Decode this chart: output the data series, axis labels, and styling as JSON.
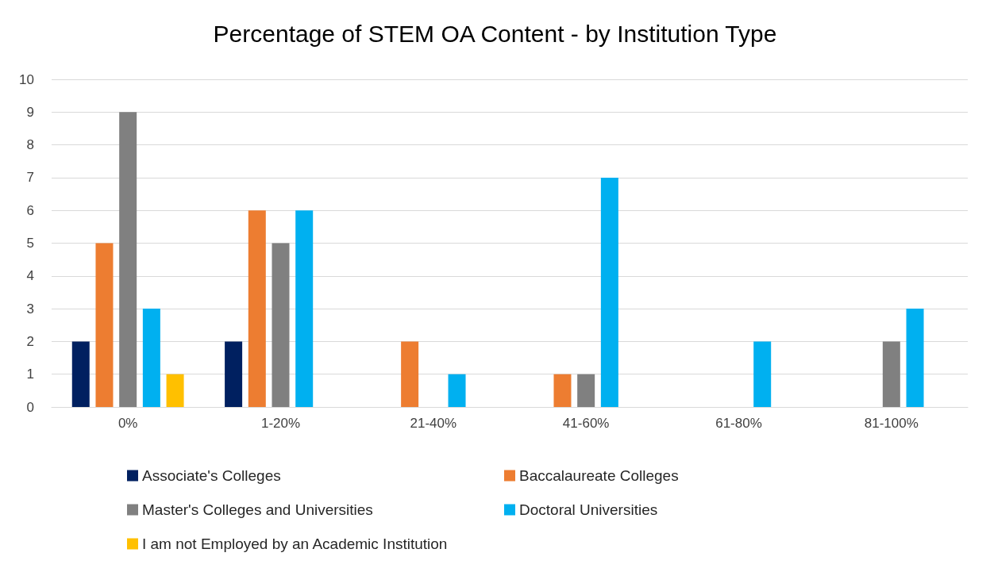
{
  "chart_data": {
    "type": "bar",
    "title": "Percentage of STEM OA Content - by Institution Type",
    "categories": [
      "0%",
      "1-20%",
      "21-40%",
      "41-60%",
      "61-80%",
      "81-100%"
    ],
    "series": [
      {
        "name": "Associate's Colleges",
        "color": "#002060",
        "values": [
          2,
          2,
          0,
          0,
          0,
          0
        ]
      },
      {
        "name": "Baccalaureate Colleges",
        "color": "#ed7d31",
        "values": [
          5,
          6,
          2,
          1,
          0,
          0
        ]
      },
      {
        "name": "Master's Colleges and Universities",
        "color": "#808080",
        "values": [
          9,
          5,
          0,
          1,
          0,
          2
        ]
      },
      {
        "name": "Doctoral Universities",
        "color": "#00b0f0",
        "values": [
          3,
          6,
          1,
          7,
          2,
          3
        ]
      },
      {
        "name": "I am not Employed by an Academic Institution",
        "color": "#ffc000",
        "values": [
          1,
          0,
          0,
          0,
          0,
          0
        ]
      }
    ],
    "ylim": [
      0,
      10
    ],
    "yticks": [
      0,
      1,
      2,
      3,
      4,
      5,
      6,
      7,
      8,
      9,
      10
    ],
    "grid": "y",
    "legend": "bottom"
  }
}
